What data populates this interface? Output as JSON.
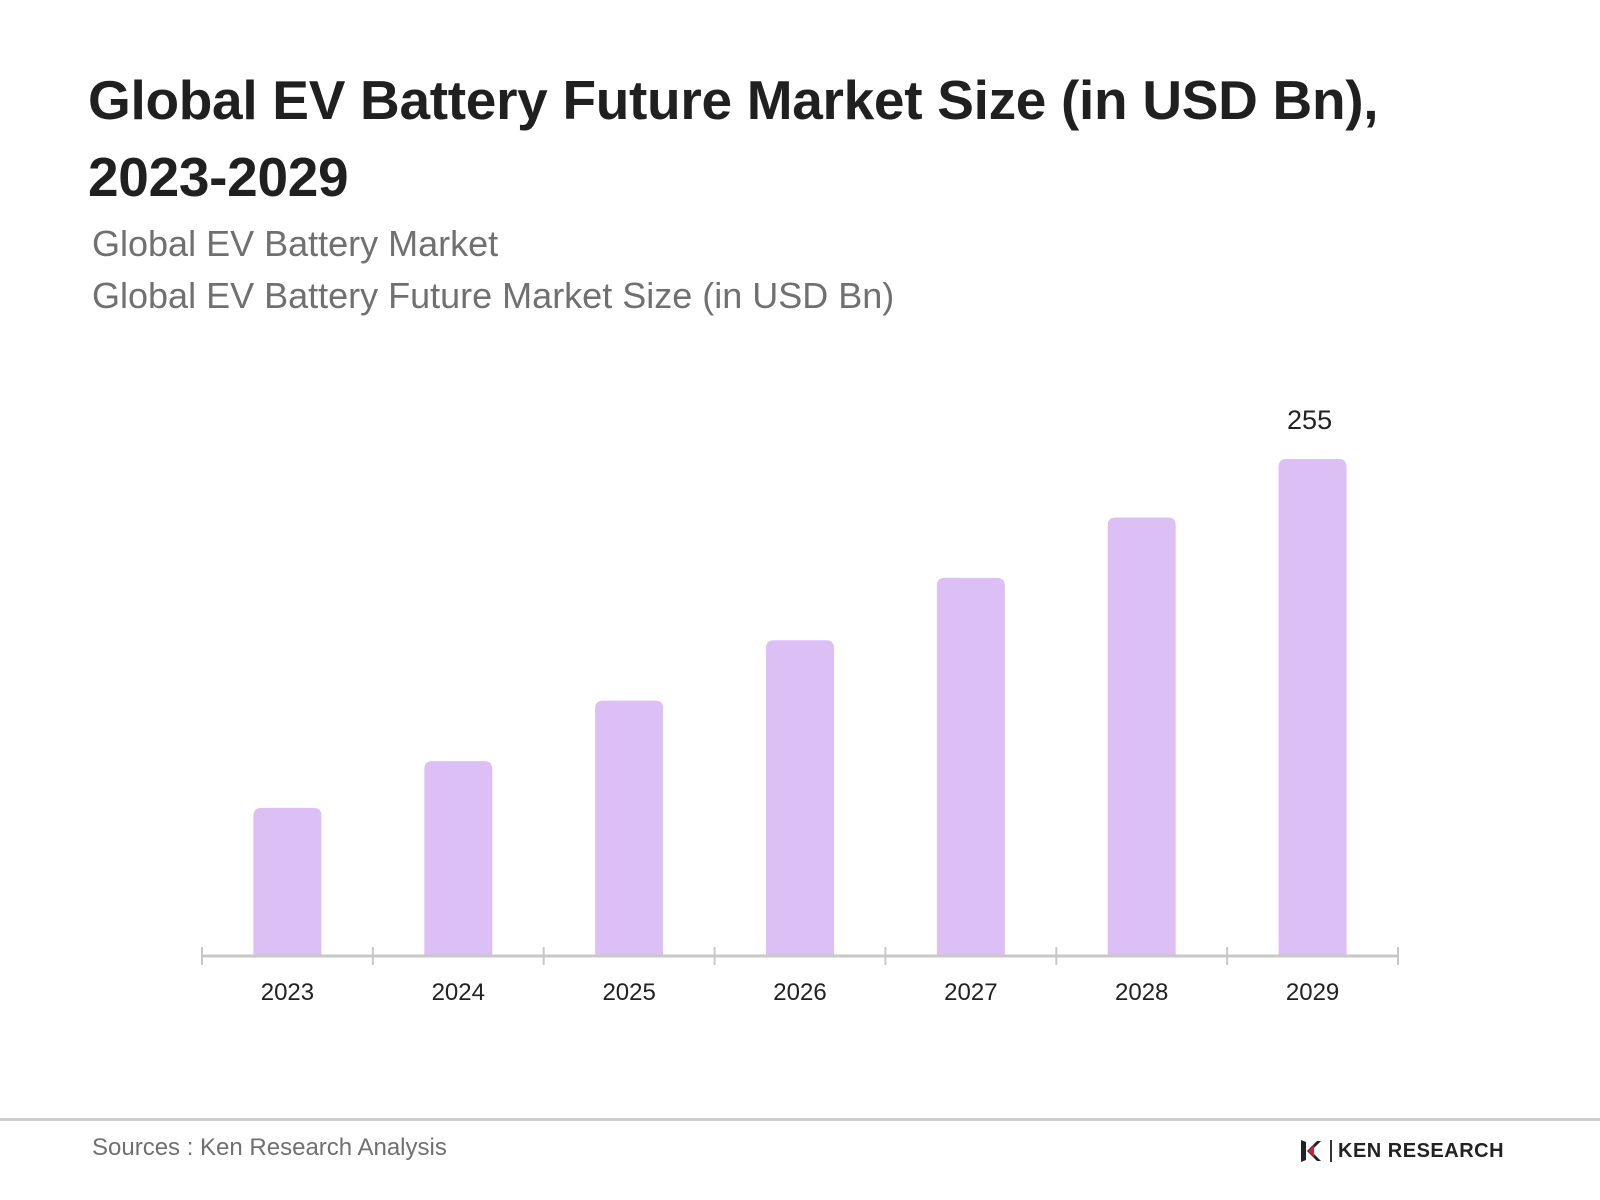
{
  "title": "Global EV Battery Future Market Size (in USD Bn), 2023-2029",
  "subtitle_lines": [
    "Global EV Battery Market",
    "Global EV Battery Future Market Size (in USD Bn)"
  ],
  "source": "Sources : Ken Research Analysis",
  "brand": {
    "text": "KEN RESEARCH",
    "icon": "ken-research-logo-icon"
  },
  "colors": {
    "bar": "#dcc0f5",
    "axis": "#c8c8c8",
    "label": "#222222"
  },
  "chart_data": {
    "type": "bar",
    "title": "Global EV Battery Future Market Size (in USD Bn), 2023-2029",
    "categories": [
      "2023",
      "2024",
      "2025",
      "2026",
      "2027",
      "2028",
      "2029"
    ],
    "values": [
      76,
      100,
      131,
      162,
      194,
      225,
      255
    ],
    "data_labels": [
      null,
      null,
      null,
      null,
      null,
      null,
      "255"
    ],
    "xlabel": "",
    "ylabel": "",
    "ylim": [
      0,
      255
    ],
    "grid": false,
    "legend": "none"
  }
}
